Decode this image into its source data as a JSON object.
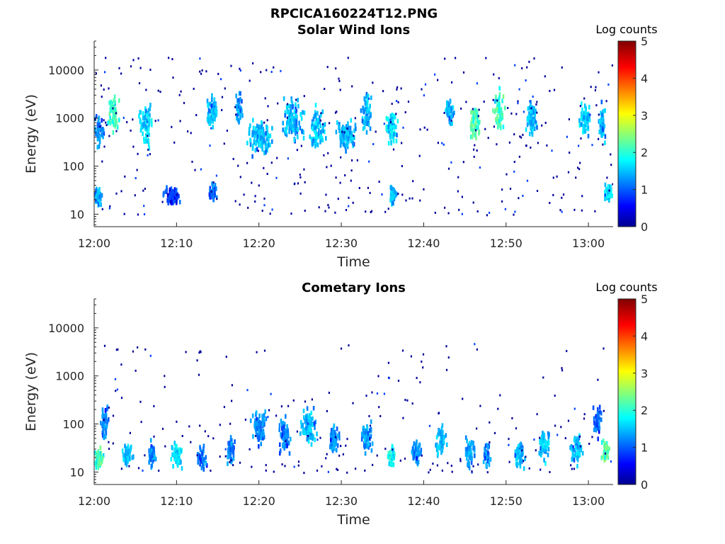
{
  "figure_title": "RPCICA160224T12.PNG",
  "chart_data": [
    {
      "type": "heatmap",
      "title": "Solar Wind Ions",
      "xlabel": "Time",
      "ylabel": "Energy (eV)",
      "x_ticks": [
        "12:00",
        "12:10",
        "12:20",
        "12:30",
        "12:40",
        "12:50",
        "13:00"
      ],
      "x_tick_minutes": [
        0,
        10,
        20,
        30,
        40,
        50,
        60
      ],
      "xlim_minutes": [
        0,
        63
      ],
      "y_scale": "log",
      "y_ticks": [
        "10",
        "100",
        "1000",
        "10000"
      ],
      "y_tick_values": [
        10,
        100,
        1000,
        10000
      ],
      "ylim": [
        5.5,
        40000
      ],
      "colorbar": {
        "label": "Log counts",
        "ticks": [
          "0",
          "1",
          "2",
          "3",
          "4",
          "5"
        ],
        "range": [
          0,
          5
        ],
        "colormap": "jet"
      },
      "clusters": [
        {
          "t": 0.3,
          "e": 25,
          "c": 1.8,
          "w": 1.2,
          "s": 0.15
        },
        {
          "t": 0.5,
          "e": 600,
          "c": 1.6,
          "w": 1.2,
          "s": 0.25
        },
        {
          "t": 2.3,
          "e": 1300,
          "c": 2.4,
          "w": 1.5,
          "s": 0.3
        },
        {
          "t": 6.3,
          "e": 800,
          "c": 2.0,
          "w": 2.0,
          "s": 0.35
        },
        {
          "t": 9.3,
          "e": 25,
          "c": 1.2,
          "w": 2.0,
          "s": 0.15
        },
        {
          "t": 14.2,
          "e": 1500,
          "c": 1.8,
          "w": 1.5,
          "s": 0.3
        },
        {
          "t": 14.3,
          "e": 30,
          "c": 1.4,
          "w": 1.0,
          "s": 0.15
        },
        {
          "t": 17.5,
          "e": 2000,
          "c": 1.7,
          "w": 1.0,
          "s": 0.25
        },
        {
          "t": 20.0,
          "e": 450,
          "c": 1.8,
          "w": 3.0,
          "s": 0.3
        },
        {
          "t": 24.0,
          "e": 1000,
          "c": 1.8,
          "w": 3.0,
          "s": 0.35
        },
        {
          "t": 27.0,
          "e": 700,
          "c": 1.9,
          "w": 2.0,
          "s": 0.35
        },
        {
          "t": 30.5,
          "e": 450,
          "c": 1.8,
          "w": 2.5,
          "s": 0.25
        },
        {
          "t": 33.0,
          "e": 1200,
          "c": 1.8,
          "w": 1.5,
          "s": 0.35
        },
        {
          "t": 36.0,
          "e": 700,
          "c": 2.0,
          "w": 1.5,
          "s": 0.3
        },
        {
          "t": 36.2,
          "e": 28,
          "c": 1.8,
          "w": 1.0,
          "s": 0.15
        },
        {
          "t": 43.0,
          "e": 1500,
          "c": 1.8,
          "w": 1.2,
          "s": 0.25
        },
        {
          "t": 46.2,
          "e": 900,
          "c": 2.5,
          "w": 1.5,
          "s": 0.3
        },
        {
          "t": 49.0,
          "e": 1500,
          "c": 2.5,
          "w": 1.5,
          "s": 0.35
        },
        {
          "t": 53.0,
          "e": 1100,
          "c": 1.8,
          "w": 1.5,
          "s": 0.3
        },
        {
          "t": 59.5,
          "e": 1100,
          "c": 1.9,
          "w": 1.5,
          "s": 0.3
        },
        {
          "t": 61.5,
          "e": 900,
          "c": 1.8,
          "w": 1.0,
          "s": 0.3
        },
        {
          "t": 62.3,
          "e": 30,
          "c": 2.0,
          "w": 1.0,
          "s": 0.15
        }
      ]
    },
    {
      "type": "heatmap",
      "title": "Cometary Ions",
      "xlabel": "Time",
      "ylabel": "Energy (eV)",
      "x_ticks": [
        "12:00",
        "12:10",
        "12:20",
        "12:30",
        "12:40",
        "12:50",
        "13:00"
      ],
      "x_tick_minutes": [
        0,
        10,
        20,
        30,
        40,
        50,
        60
      ],
      "xlim_minutes": [
        0,
        63
      ],
      "y_scale": "log",
      "y_ticks": [
        "10",
        "100",
        "1000",
        "10000"
      ],
      "y_tick_values": [
        10,
        100,
        1000,
        10000
      ],
      "ylim": [
        5.5,
        40000
      ],
      "colorbar": {
        "label": "Log counts",
        "ticks": [
          "0",
          "1",
          "2",
          "3",
          "4",
          "5"
        ],
        "range": [
          0,
          5
        ],
        "colormap": "jet"
      },
      "clusters": [
        {
          "t": 0.4,
          "e": 22,
          "c": 2.5,
          "w": 1.2,
          "s": 0.2
        },
        {
          "t": 1.2,
          "e": 120,
          "c": 1.5,
          "w": 1.0,
          "s": 0.3
        },
        {
          "t": 4.0,
          "e": 25,
          "c": 1.8,
          "w": 1.5,
          "s": 0.2
        },
        {
          "t": 7.0,
          "e": 25,
          "c": 1.6,
          "w": 1.2,
          "s": 0.2
        },
        {
          "t": 10.0,
          "e": 25,
          "c": 2.0,
          "w": 1.5,
          "s": 0.2
        },
        {
          "t": 13.0,
          "e": 22,
          "c": 1.5,
          "w": 1.2,
          "s": 0.2
        },
        {
          "t": 16.5,
          "e": 30,
          "c": 1.6,
          "w": 1.2,
          "s": 0.25
        },
        {
          "t": 20.0,
          "e": 100,
          "c": 1.6,
          "w": 2.0,
          "s": 0.3
        },
        {
          "t": 23.0,
          "e": 60,
          "c": 1.5,
          "w": 1.5,
          "s": 0.3
        },
        {
          "t": 26.0,
          "e": 100,
          "c": 1.8,
          "w": 2.0,
          "s": 0.3
        },
        {
          "t": 29.0,
          "e": 50,
          "c": 1.6,
          "w": 1.5,
          "s": 0.25
        },
        {
          "t": 33.0,
          "e": 60,
          "c": 1.7,
          "w": 1.5,
          "s": 0.25
        },
        {
          "t": 36.0,
          "e": 25,
          "c": 2.2,
          "w": 1.2,
          "s": 0.2
        },
        {
          "t": 39.0,
          "e": 30,
          "c": 1.6,
          "w": 1.2,
          "s": 0.2
        },
        {
          "t": 42.0,
          "e": 50,
          "c": 1.8,
          "w": 1.5,
          "s": 0.25
        },
        {
          "t": 45.5,
          "e": 30,
          "c": 1.7,
          "w": 1.5,
          "s": 0.25
        },
        {
          "t": 47.5,
          "e": 25,
          "c": 1.6,
          "w": 1.0,
          "s": 0.2
        },
        {
          "t": 51.5,
          "e": 25,
          "c": 1.8,
          "w": 1.5,
          "s": 0.2
        },
        {
          "t": 54.5,
          "e": 40,
          "c": 1.9,
          "w": 1.5,
          "s": 0.25
        },
        {
          "t": 58.5,
          "e": 30,
          "c": 1.8,
          "w": 1.5,
          "s": 0.25
        },
        {
          "t": 62.0,
          "e": 30,
          "c": 2.6,
          "w": 1.0,
          "s": 0.2
        },
        {
          "t": 61.0,
          "e": 120,
          "c": 1.4,
          "w": 1.0,
          "s": 0.3
        }
      ]
    }
  ]
}
